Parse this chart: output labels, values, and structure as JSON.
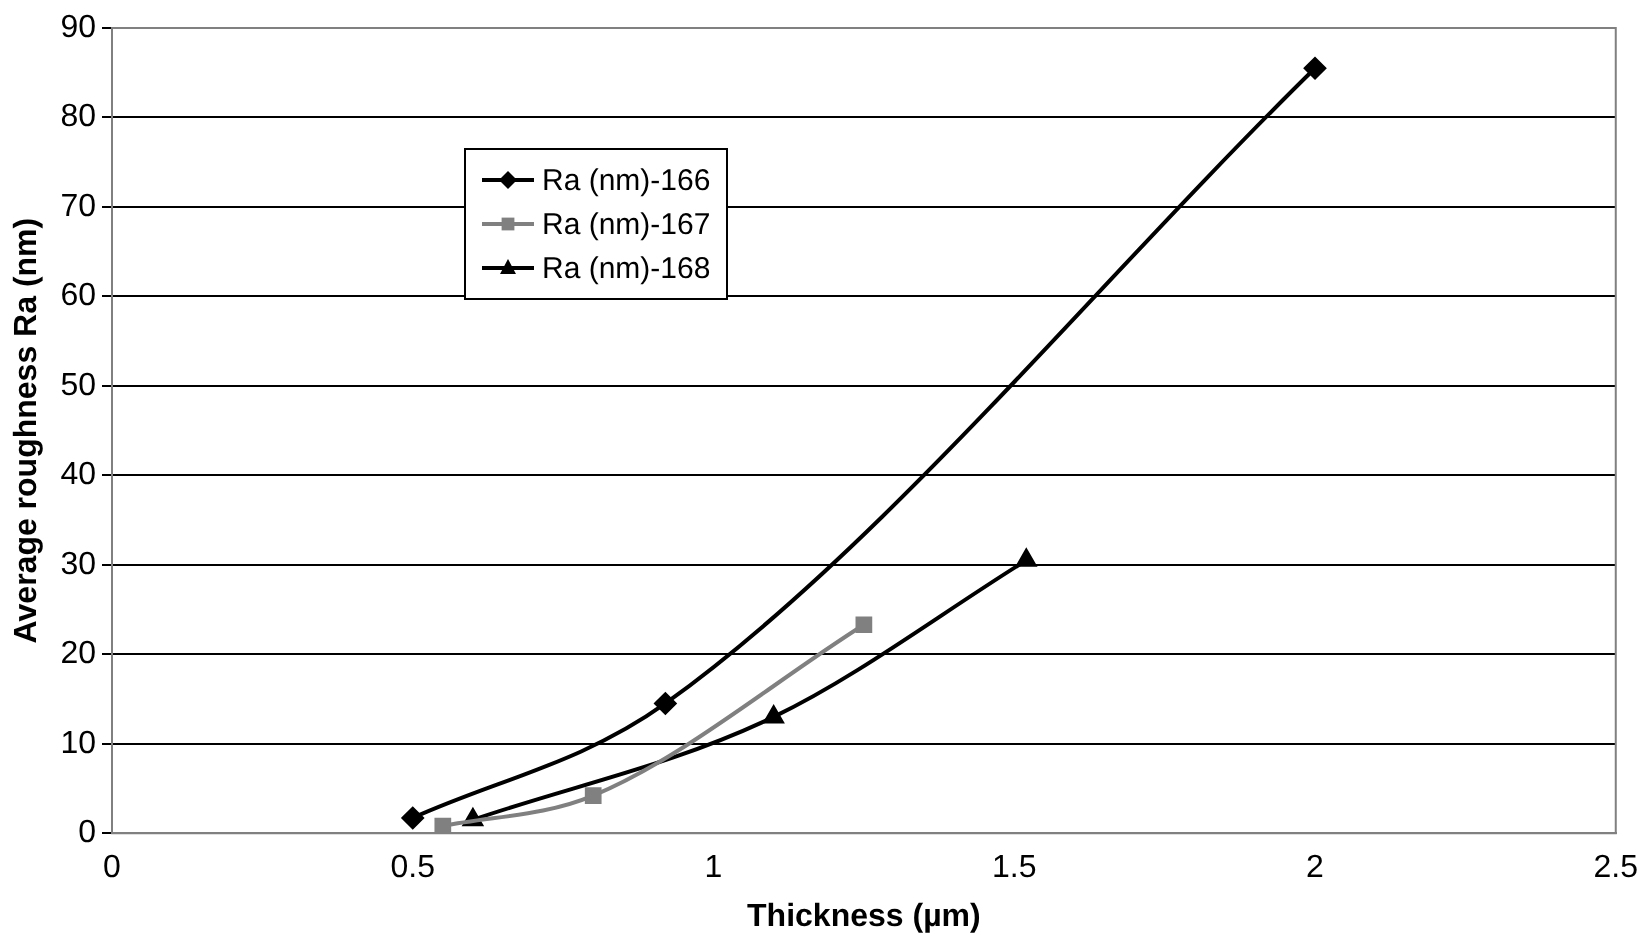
{
  "chart_data": {
    "type": "line",
    "xlabel": "Thickness (µm)",
    "ylabel": "Average roughness Ra (nm)",
    "xlim": [
      0,
      2.5
    ],
    "xticks": [
      0,
      0.5,
      1,
      1.5,
      2,
      2.5
    ],
    "ylim": [
      0,
      90
    ],
    "yticks": [
      0,
      10,
      20,
      30,
      40,
      50,
      60,
      70,
      80,
      90
    ],
    "grid": "y",
    "legend": "top left",
    "series": [
      {
        "name": "Ra (nm)-166",
        "color": "#000000",
        "marker": "diamond",
        "x": [
          0.5,
          0.92,
          2.0
        ],
        "values": [
          1.7,
          14.5,
          85.5
        ]
      },
      {
        "name": "Ra (nm)-167",
        "color": "#808080",
        "marker": "square",
        "x": [
          0.55,
          0.8,
          1.25
        ],
        "values": [
          0.8,
          4.2,
          23.3
        ]
      },
      {
        "name": "Ra (nm)-168",
        "color": "#000000",
        "marker": "triangle",
        "x": [
          0.6,
          1.1,
          1.52
        ],
        "values": [
          1.5,
          13,
          30.5
        ]
      }
    ]
  }
}
